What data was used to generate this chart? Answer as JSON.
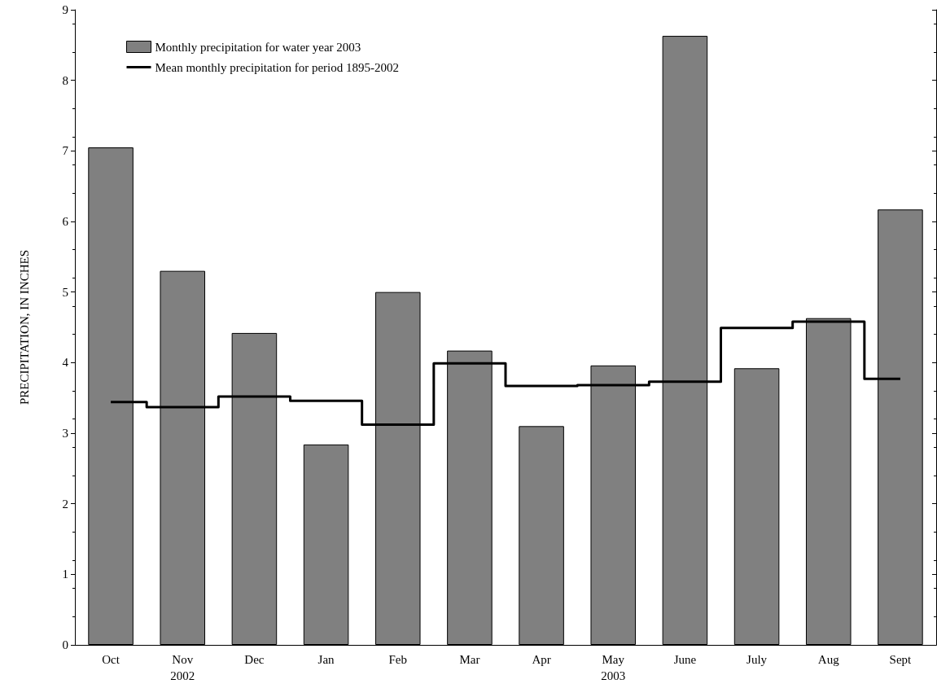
{
  "chart_data": {
    "type": "bar",
    "ylabel": "PRECIPITATION, IN INCHES",
    "categories": [
      "Oct",
      "Nov\n2002",
      "Dec",
      "Jan",
      "Feb",
      "Mar",
      "Apr",
      "May\n2003",
      "June",
      "July",
      "Aug",
      "Sept"
    ],
    "series": [
      {
        "name": "Monthly precipitation for water year 2003",
        "color": "#808080",
        "values": [
          7.05,
          5.3,
          4.42,
          2.84,
          5.0,
          4.17,
          3.1,
          3.96,
          8.63,
          3.92,
          4.63,
          6.17
        ]
      },
      {
        "name": "Mean monthly precipitation for period 1895-2002",
        "type": "step",
        "color": "#000000",
        "values": [
          3.44,
          3.37,
          3.52,
          3.46,
          3.12,
          3.99,
          3.67,
          3.68,
          3.73,
          4.49,
          4.58,
          3.77
        ]
      }
    ],
    "ylim": [
      0,
      9
    ],
    "yticks": [
      0,
      1,
      2,
      3,
      4,
      5,
      6,
      7,
      8,
      9
    ],
    "grid": false,
    "legend": "top left"
  }
}
